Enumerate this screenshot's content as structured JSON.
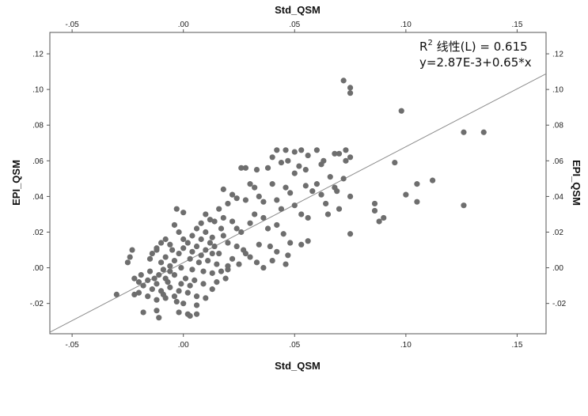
{
  "chart_data": {
    "type": "scatter",
    "title": "",
    "xlabel": "Std_QSM",
    "ylabel": "EPI_QSM",
    "xlim": [
      -0.06,
      0.163
    ],
    "ylim": [
      -0.037,
      0.132
    ],
    "x_ticks": [
      -0.05,
      0.0,
      0.05,
      0.1,
      0.15
    ],
    "x_tick_labels": [
      "-.05",
      ".00",
      ".05",
      ".10",
      ".15"
    ],
    "y_ticks": [
      -0.02,
      0.0,
      0.02,
      0.04,
      0.06,
      0.08,
      0.1,
      0.12
    ],
    "y_tick_labels": [
      "-.02",
      ".00",
      ".02",
      ".04",
      ".06",
      ".08",
      ".10",
      ".12"
    ],
    "grid": false,
    "annotation": {
      "r2_prefix": "R",
      "r2_sup": "2",
      "r2_rest": " 线性(L) = 0.615",
      "equation": "y=2.87E-3+0.65*x"
    },
    "fit_line": {
      "intercept": 0.00287,
      "slope": 0.65
    },
    "colors": {
      "points": "#6e6e6e",
      "line": "#8c8c8c",
      "frame": "#555555"
    },
    "series": [
      {
        "points": [
          [
            0.072,
            0.105
          ],
          [
            0.075,
            0.101
          ],
          [
            0.075,
            0.098
          ],
          [
            0.098,
            0.088
          ],
          [
            0.126,
            0.076
          ],
          [
            0.135,
            0.076
          ],
          [
            0.042,
            0.066
          ],
          [
            0.046,
            0.066
          ],
          [
            0.05,
            0.065
          ],
          [
            0.053,
            0.066
          ],
          [
            0.056,
            0.063
          ],
          [
            0.06,
            0.066
          ],
          [
            0.068,
            0.064
          ],
          [
            0.07,
            0.064
          ],
          [
            0.073,
            0.066
          ],
          [
            0.075,
            0.062
          ],
          [
            0.04,
            0.062
          ],
          [
            0.044,
            0.059
          ],
          [
            0.047,
            0.06
          ],
          [
            0.052,
            0.057
          ],
          [
            0.063,
            0.06
          ],
          [
            0.026,
            0.056
          ],
          [
            0.028,
            0.056
          ],
          [
            0.033,
            0.055
          ],
          [
            0.038,
            0.056
          ],
          [
            0.05,
            0.053
          ],
          [
            0.055,
            0.055
          ],
          [
            0.062,
            0.058
          ],
          [
            0.073,
            0.06
          ],
          [
            0.095,
            0.059
          ],
          [
            0.105,
            0.047
          ],
          [
            0.112,
            0.049
          ],
          [
            0.1,
            0.041
          ],
          [
            0.105,
            0.037
          ],
          [
            0.126,
            0.035
          ],
          [
            0.066,
            0.051
          ],
          [
            0.06,
            0.047
          ],
          [
            0.068,
            0.045
          ],
          [
            0.069,
            0.043
          ],
          [
            0.075,
            0.04
          ],
          [
            0.072,
            0.05
          ],
          [
            0.03,
            0.047
          ],
          [
            0.032,
            0.045
          ],
          [
            0.04,
            0.047
          ],
          [
            0.046,
            0.045
          ],
          [
            0.048,
            0.042
          ],
          [
            0.055,
            0.046
          ],
          [
            0.058,
            0.043
          ],
          [
            0.062,
            0.041
          ],
          [
            0.064,
            0.036
          ],
          [
            0.065,
            0.03
          ],
          [
            0.07,
            0.033
          ],
          [
            0.086,
            0.036
          ],
          [
            0.086,
            0.032
          ],
          [
            0.088,
            0.026
          ],
          [
            0.09,
            0.028
          ],
          [
            0.075,
            0.019
          ],
          [
            0.018,
            0.044
          ],
          [
            0.022,
            0.041
          ],
          [
            0.024,
            0.039
          ],
          [
            0.02,
            0.036
          ],
          [
            0.028,
            0.038
          ],
          [
            0.034,
            0.04
          ],
          [
            0.036,
            0.037
          ],
          [
            0.042,
            0.038
          ],
          [
            0.044,
            0.033
          ],
          [
            0.05,
            0.035
          ],
          [
            0.053,
            0.03
          ],
          [
            0.056,
            0.028
          ],
          [
            0.032,
            0.03
          ],
          [
            0.036,
            0.028
          ],
          [
            0.03,
            0.025
          ],
          [
            0.038,
            0.022
          ],
          [
            0.042,
            0.024
          ],
          [
            0.045,
            0.019
          ],
          [
            0.048,
            0.014
          ],
          [
            0.053,
            0.013
          ],
          [
            0.056,
            0.015
          ],
          [
            0.039,
            0.012
          ],
          [
            0.042,
            0.009
          ],
          [
            0.047,
            0.007
          ],
          [
            0.034,
            0.013
          ],
          [
            0.027,
            0.01
          ],
          [
            0.03,
            0.006
          ],
          [
            0.033,
            0.003
          ],
          [
            0.036,
            0.0
          ],
          [
            0.04,
            0.004
          ],
          [
            0.046,
            0.002
          ],
          [
            0.016,
            0.033
          ],
          [
            0.018,
            0.028
          ],
          [
            0.022,
            0.026
          ],
          [
            0.024,
            0.022
          ],
          [
            0.026,
            0.02
          ],
          [
            0.018,
            0.018
          ],
          [
            0.02,
            0.014
          ],
          [
            0.024,
            0.012
          ],
          [
            0.028,
            0.008
          ],
          [
            0.022,
            0.005
          ],
          [
            0.025,
            0.002
          ],
          [
            0.02,
            -0.001
          ],
          [
            0.016,
            0.008
          ],
          [
            0.014,
            0.012
          ],
          [
            0.01,
            0.03
          ],
          [
            0.012,
            0.027
          ],
          [
            0.008,
            0.025
          ],
          [
            0.006,
            0.022
          ],
          [
            0.01,
            0.02
          ],
          [
            0.013,
            0.017
          ],
          [
            0.008,
            0.016
          ],
          [
            0.004,
            0.018
          ],
          [
            0.002,
            0.014
          ],
          [
            0.006,
            0.012
          ],
          [
            0.01,
            0.01
          ],
          [
            0.013,
            0.008
          ],
          [
            0.004,
            0.009
          ],
          [
            0.0,
            0.011
          ],
          [
            -0.002,
            0.008
          ],
          [
            0.003,
            0.005
          ],
          [
            0.007,
            0.003
          ],
          [
            0.011,
            0.004
          ],
          [
            0.015,
            0.002
          ],
          [
            -0.004,
            0.004
          ],
          [
            -0.008,
            0.006
          ],
          [
            -0.012,
            0.01
          ],
          [
            -0.006,
            0.001
          ],
          [
            -0.001,
            0.0
          ],
          [
            0.004,
            -0.001
          ],
          [
            0.009,
            -0.002
          ],
          [
            0.013,
            -0.003
          ],
          [
            0.017,
            -0.002
          ],
          [
            -0.003,
            0.033
          ],
          [
            0.0,
            0.031
          ],
          [
            -0.004,
            0.024
          ],
          [
            -0.002,
            0.02
          ],
          [
            -0.008,
            0.016
          ],
          [
            -0.01,
            0.014
          ],
          [
            -0.012,
            0.011
          ],
          [
            -0.014,
            0.008
          ],
          [
            -0.015,
            0.005
          ],
          [
            -0.01,
            0.003
          ],
          [
            -0.006,
            -0.002
          ],
          [
            -0.011,
            -0.004
          ],
          [
            -0.015,
            -0.002
          ],
          [
            -0.019,
            -0.004
          ],
          [
            -0.022,
            -0.006
          ],
          [
            -0.024,
            0.006
          ],
          [
            -0.025,
            0.003
          ],
          [
            -0.023,
            0.01
          ],
          [
            -0.016,
            -0.007
          ],
          [
            -0.012,
            -0.009
          ],
          [
            -0.008,
            -0.006
          ],
          [
            -0.004,
            -0.004
          ],
          [
            0.001,
            -0.006
          ],
          [
            0.005,
            -0.007
          ],
          [
            0.009,
            -0.009
          ],
          [
            -0.018,
            -0.01
          ],
          [
            -0.014,
            -0.012
          ],
          [
            -0.01,
            -0.013
          ],
          [
            -0.006,
            -0.011
          ],
          [
            -0.002,
            -0.013
          ],
          [
            0.002,
            -0.014
          ],
          [
            0.006,
            -0.016
          ],
          [
            0.01,
            -0.017
          ],
          [
            -0.02,
            -0.014
          ],
          [
            -0.016,
            -0.016
          ],
          [
            -0.012,
            -0.018
          ],
          [
            -0.008,
            -0.017
          ],
          [
            -0.003,
            -0.019
          ],
          [
            -0.018,
            -0.025
          ],
          [
            -0.012,
            -0.024
          ],
          [
            -0.011,
            -0.028
          ],
          [
            -0.002,
            -0.025
          ],
          [
            0.002,
            -0.026
          ],
          [
            0.003,
            -0.027
          ],
          [
            0.006,
            -0.026
          ],
          [
            -0.03,
            -0.015
          ],
          [
            -0.022,
            -0.015
          ],
          [
            -0.02,
            -0.008
          ],
          [
            0.015,
            -0.008
          ],
          [
            0.019,
            -0.006
          ],
          [
            0.013,
            -0.012
          ],
          [
            0.02,
            0.001
          ],
          [
            -0.006,
            0.013
          ],
          [
            0.0,
            0.016
          ],
          [
            -0.005,
            0.01
          ],
          [
            -0.009,
            -0.001
          ],
          [
            0.008,
            0.007
          ],
          [
            0.012,
            0.014
          ],
          [
            0.017,
            0.022
          ],
          [
            0.014,
            0.026
          ],
          [
            -0.007,
            -0.008
          ],
          [
            -0.001,
            -0.009
          ],
          [
            0.003,
            -0.01
          ],
          [
            -0.013,
            -0.006
          ],
          [
            -0.009,
            -0.015
          ],
          [
            -0.004,
            -0.016
          ],
          [
            0.0,
            -0.02
          ],
          [
            0.006,
            -0.021
          ]
        ]
      }
    ]
  }
}
